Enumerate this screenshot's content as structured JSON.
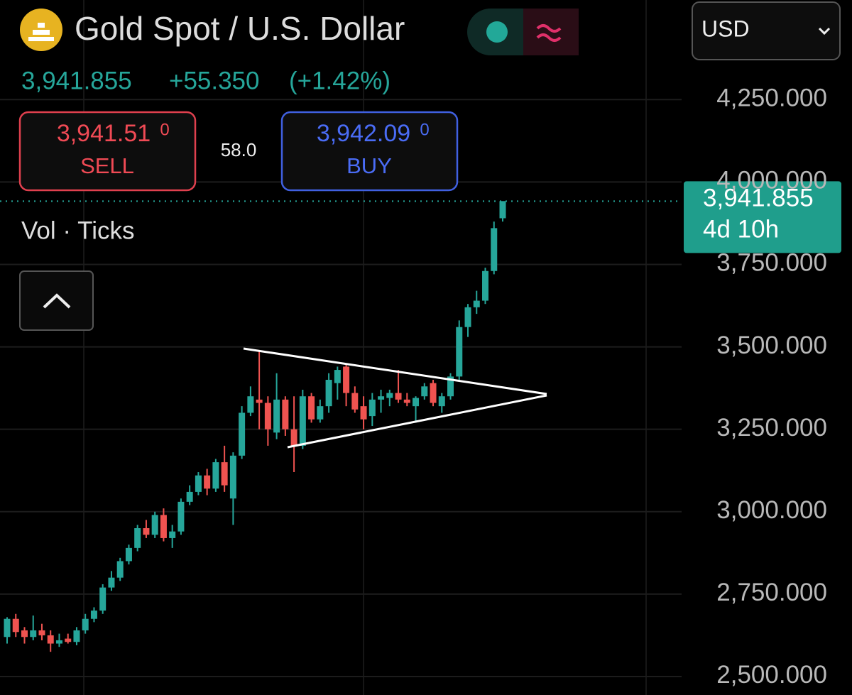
{
  "header": {
    "title": "Gold Spot / U.S. Dollar",
    "price": "3,941.855",
    "change": "+55.350",
    "change_pct": "(+1.42%)"
  },
  "trade": {
    "sell": {
      "price": "3,941.51",
      "pip": "0",
      "label": "SELL"
    },
    "spread": "58.0",
    "buy": {
      "price": "3,942.09",
      "pip": "0",
      "label": "BUY"
    }
  },
  "indicator": "Vol · Ticks",
  "currency": "USD",
  "chart_data": {
    "type": "candlestick",
    "up_color": "#26a69a",
    "down_color": "#ef5350",
    "grid": true,
    "ylim": [
      2444,
      4552
    ],
    "yticks": [
      {
        "value": 2500,
        "label": "2,500.000"
      },
      {
        "value": 2750,
        "label": "2,750.000"
      },
      {
        "value": 3000,
        "label": "3,000.000"
      },
      {
        "value": 3250,
        "label": "3,250.000"
      },
      {
        "value": 3500,
        "label": "3,500.000"
      },
      {
        "value": 3750,
        "label": "3,750.000"
      },
      {
        "value": 4000,
        "label": "4,000.000"
      },
      {
        "value": 4250,
        "label": "4,250.000"
      }
    ],
    "last_price": {
      "value": 3941.855,
      "label": "3,941.855"
    },
    "countdown": "4d 10h",
    "open": [
      2620,
      2675,
      2640,
      2620,
      2640,
      2625,
      2600,
      2615,
      2605,
      2640,
      2675,
      2700,
      2770,
      2800,
      2850,
      2890,
      2950,
      2930,
      2990,
      2920,
      2940,
      3030,
      3060,
      3110,
      3070,
      3150,
      3040,
      3170,
      3300,
      3340,
      3330,
      3240,
      3340,
      3250,
      3200,
      3350,
      3280,
      3320,
      3390,
      3440,
      3360,
      3320,
      3290,
      3340,
      3345,
      3360,
      3340,
      3320,
      3350,
      3390,
      3320,
      3350,
      3410,
      3560,
      3620,
      3640,
      3730,
      3890
    ],
    "high": [
      2680,
      2690,
      2650,
      2685,
      2660,
      2640,
      2630,
      2630,
      2650,
      2690,
      2710,
      2780,
      2820,
      2860,
      2900,
      2960,
      2975,
      3000,
      3010,
      2960,
      3040,
      3080,
      3120,
      3130,
      3160,
      3200,
      3180,
      3320,
      3380,
      3490,
      3350,
      3420,
      3350,
      3350,
      3370,
      3360,
      3340,
      3420,
      3440,
      3450,
      3380,
      3350,
      3360,
      3370,
      3370,
      3430,
      3360,
      3350,
      3390,
      3400,
      3360,
      3420,
      3580,
      3630,
      3670,
      3740,
      3880,
      3940
    ],
    "low": [
      2600,
      2620,
      2600,
      2610,
      2610,
      2575,
      2590,
      2600,
      2595,
      2630,
      2665,
      2690,
      2760,
      2790,
      2840,
      2880,
      2920,
      2920,
      2910,
      2890,
      2930,
      3020,
      3050,
      3050,
      3060,
      3060,
      2960,
      3160,
      3290,
      3250,
      3200,
      3220,
      3230,
      3120,
      3190,
      3270,
      3270,
      3300,
      3340,
      3320,
      3300,
      3250,
      3260,
      3300,
      3320,
      3330,
      3320,
      3270,
      3340,
      3320,
      3300,
      3340,
      3400,
      3530,
      3600,
      3630,
      3720,
      3880
    ],
    "close": [
      2675,
      2635,
      2620,
      2640,
      2625,
      2600,
      2610,
      2605,
      2640,
      2675,
      2700,
      2770,
      2800,
      2850,
      2890,
      2950,
      2930,
      2990,
      2920,
      2940,
      3030,
      3060,
      3110,
      3070,
      3150,
      3080,
      3170,
      3300,
      3350,
      3330,
      3250,
      3340,
      3250,
      3200,
      3350,
      3280,
      3320,
      3400,
      3430,
      3360,
      3310,
      3280,
      3340,
      3350,
      3360,
      3340,
      3330,
      3345,
      3380,
      3330,
      3350,
      3410,
      3560,
      3620,
      3640,
      3730,
      3860,
      3942
    ]
  }
}
